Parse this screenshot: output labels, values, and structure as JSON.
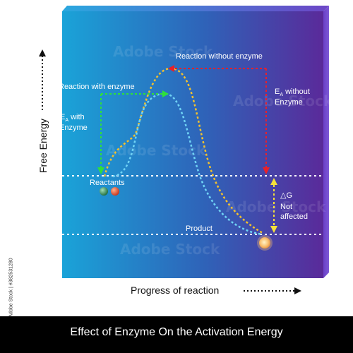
{
  "diagram": {
    "labels": {
      "reaction_without_enzyme": "Reaction without enzyme",
      "reaction_with_enzyme": "Reaction with enzyme",
      "ea_with_enzyme_sub": "A",
      "ea_with_enzyme_main": "E",
      "ea_with_enzyme_rest1": " with",
      "ea_with_enzyme_rest2": "Enzyme",
      "ea_without_enzyme_main": "E",
      "ea_without_enzyme_sub": "A",
      "ea_without_enzyme_rest1": " without",
      "ea_without_enzyme_rest2": "Enzyme",
      "reactants": "Reactants",
      "product": "Product",
      "delta_g": "△G",
      "not": "Not",
      "affected": "affected"
    },
    "axes": {
      "y_label": "Free Energy",
      "x_label": "Progress of reaction"
    },
    "colors": {
      "panel_left": "#1a9fd6",
      "panel_right": "#5a2a9a",
      "without_enzyme_curve": "#f2c12e",
      "with_enzyme_curve": "#6fd3f5",
      "without_enzyme_arrow": "#e8202a",
      "with_enzyme_arrow": "#2ee03a",
      "delta_g_arrow": "#f5e03a"
    }
  },
  "caption": "Effect of Enzyme On the Activation Energy",
  "stock_id": "Adobe Stock | #382531280",
  "watermark": "Adobe Stock"
}
